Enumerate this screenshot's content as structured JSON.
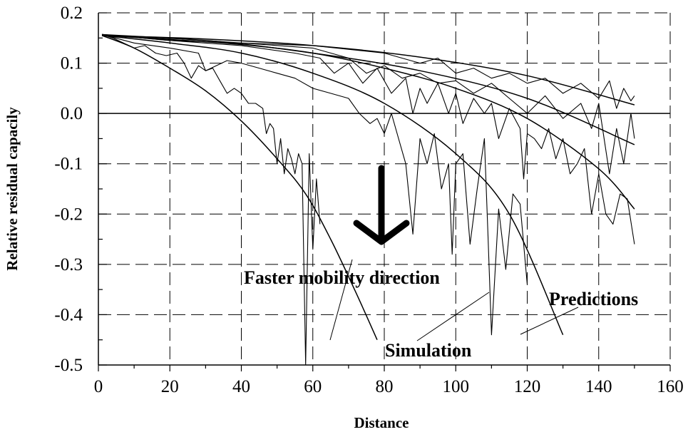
{
  "chart_data": {
    "type": "line",
    "title": "",
    "xlabel": "Distance",
    "ylabel": "Relative residual capacily",
    "xlim": [
      0,
      160
    ],
    "ylim": [
      -0.5,
      0.2
    ],
    "x_ticks": [
      0,
      20,
      40,
      60,
      80,
      100,
      120,
      140,
      160
    ],
    "y_ticks": [
      0.2,
      0.1,
      0.0,
      -0.1,
      -0.2,
      -0.3,
      -0.4,
      -0.5
    ],
    "x_tick_labels": [
      "0",
      "20",
      "40",
      "60",
      "80",
      "100",
      "120",
      "140",
      "160"
    ],
    "y_tick_labels": [
      "0.2",
      "0.1",
      "0.0",
      "-0.1",
      "-0.2",
      "-0.3",
      "-0.4",
      "-0.5"
    ],
    "grid": true,
    "annotations": {
      "direction": "Faster mobility direction",
      "simulation": "Simulation",
      "predictions": "Predictions"
    },
    "predictions": [
      {
        "x": [
          1,
          10,
          20,
          30,
          40,
          50,
          58,
          65,
          72,
          78
        ],
        "y": [
          0.155,
          0.13,
          0.09,
          0.045,
          -0.015,
          -0.09,
          -0.16,
          -0.25,
          -0.355,
          -0.45
        ]
      },
      {
        "x": [
          1,
          20,
          40,
          60,
          80,
          100,
          115,
          130
        ],
        "y": [
          0.155,
          0.14,
          0.12,
          0.08,
          0.02,
          -0.08,
          -0.2,
          -0.44
        ]
      },
      {
        "x": [
          1,
          20,
          40,
          60,
          80,
          100,
          120,
          140,
          150
        ],
        "y": [
          0.155,
          0.147,
          0.137,
          0.12,
          0.09,
          0.05,
          -0.01,
          -0.11,
          -0.19
        ]
      },
      {
        "x": [
          1,
          30,
          60,
          90,
          120,
          150
        ],
        "y": [
          0.155,
          0.145,
          0.12,
          0.085,
          0.03,
          -0.062
        ]
      },
      {
        "x": [
          1,
          30,
          60,
          90,
          120,
          150
        ],
        "y": [
          0.155,
          0.148,
          0.135,
          0.112,
          0.075,
          0.017
        ]
      }
    ],
    "series": [
      {
        "x": [
          1,
          4,
          7,
          10,
          13,
          16,
          19,
          22,
          24,
          26,
          28,
          30,
          32,
          34,
          36,
          38,
          40,
          42,
          44,
          46,
          47,
          48,
          49,
          50,
          51,
          52,
          53,
          54,
          55,
          56,
          57,
          58,
          59,
          60,
          61,
          62
        ],
        "y": [
          0.157,
          0.15,
          0.14,
          0.13,
          0.135,
          0.12,
          0.115,
          0.12,
          0.1,
          0.07,
          0.095,
          0.085,
          0.09,
          0.065,
          0.04,
          0.05,
          0.04,
          0.02,
          0.02,
          0.01,
          -0.04,
          -0.02,
          -0.03,
          -0.1,
          -0.05,
          -0.12,
          -0.07,
          -0.09,
          -0.12,
          -0.08,
          -0.1,
          -0.5,
          -0.08,
          -0.27,
          -0.13,
          -0.22
        ]
      },
      {
        "x": [
          1,
          10,
          20,
          28,
          30,
          33,
          36,
          40,
          45,
          50,
          55,
          60,
          65,
          70,
          73,
          76,
          78,
          80,
          82,
          84,
          86,
          88,
          90,
          92,
          94,
          96,
          98,
          99,
          100,
          102,
          104,
          106,
          108,
          109,
          110,
          112,
          114,
          116,
          118,
          120
        ],
        "y": [
          0.157,
          0.14,
          0.13,
          0.12,
          0.085,
          0.095,
          0.105,
          0.1,
          0.09,
          0.08,
          0.07,
          0.05,
          0.04,
          0.03,
          0.0,
          -0.02,
          -0.01,
          -0.04,
          0.0,
          -0.05,
          -0.1,
          -0.24,
          -0.05,
          -0.1,
          -0.04,
          -0.15,
          -0.1,
          -0.28,
          -0.1,
          -0.08,
          -0.26,
          -0.15,
          -0.05,
          -0.24,
          -0.44,
          -0.19,
          -0.31,
          -0.16,
          -0.18,
          -0.34
        ]
      },
      {
        "x": [
          1,
          20,
          40,
          55,
          62,
          66,
          70,
          74,
          78,
          82,
          86,
          88,
          90,
          92,
          95,
          98,
          100,
          102,
          105,
          108,
          110,
          112,
          115,
          118,
          119,
          120,
          122,
          124,
          126,
          128,
          130,
          132,
          134,
          136,
          138,
          140,
          142,
          144,
          146,
          148,
          150
        ],
        "y": [
          0.157,
          0.145,
          0.135,
          0.12,
          0.11,
          0.08,
          0.1,
          0.06,
          0.09,
          0.04,
          0.07,
          0.0,
          0.05,
          0.02,
          0.06,
          0.0,
          0.04,
          -0.02,
          0.03,
          0.0,
          0.02,
          -0.05,
          0.01,
          -0.03,
          -0.13,
          -0.04,
          -0.05,
          -0.07,
          -0.03,
          -0.09,
          -0.05,
          -0.12,
          -0.1,
          -0.07,
          -0.2,
          -0.12,
          -0.2,
          -0.22,
          -0.16,
          -0.17,
          -0.26
        ]
      },
      {
        "x": [
          1,
          20,
          40,
          60,
          70,
          75,
          80,
          85,
          90,
          95,
          100,
          105,
          110,
          115,
          120,
          125,
          130,
          135,
          138,
          140,
          143,
          145,
          147,
          149,
          150
        ],
        "y": [
          0.157,
          0.145,
          0.14,
          0.13,
          0.11,
          0.08,
          0.095,
          0.07,
          0.08,
          0.06,
          0.065,
          0.04,
          0.06,
          0.03,
          0.0,
          0.035,
          -0.01,
          0.02,
          -0.03,
          0.02,
          -0.12,
          -0.03,
          -0.1,
          0.0,
          -0.05
        ]
      },
      {
        "x": [
          1,
          20,
          40,
          60,
          80,
          90,
          95,
          100,
          105,
          110,
          115,
          120,
          125,
          130,
          135,
          140,
          143,
          145,
          147,
          149,
          150
        ],
        "y": [
          0.157,
          0.15,
          0.14,
          0.135,
          0.12,
          0.1,
          0.11,
          0.08,
          0.09,
          0.07,
          0.08,
          0.06,
          0.07,
          0.04,
          0.06,
          0.03,
          0.065,
          0.01,
          0.05,
          0.025,
          0.035
        ]
      }
    ]
  }
}
